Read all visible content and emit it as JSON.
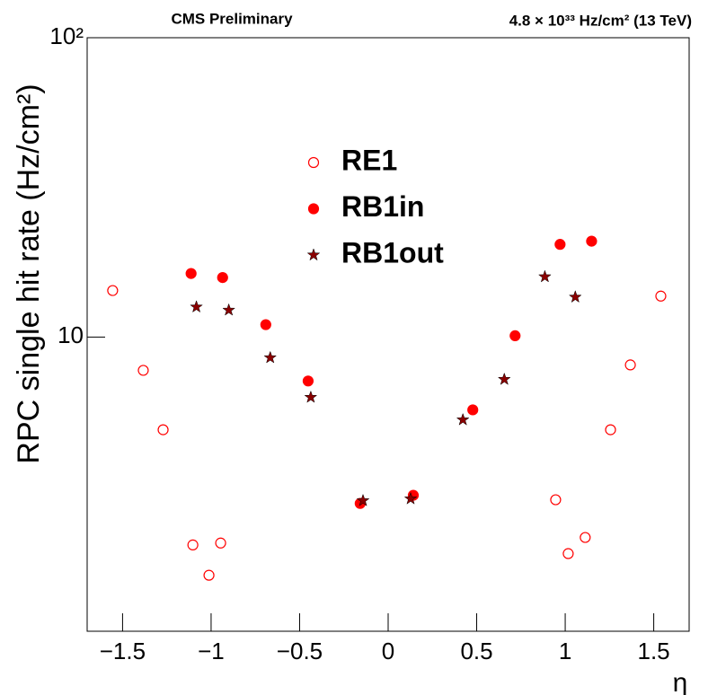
{
  "chart_data": {
    "type": "scatter",
    "title": "CMS Preliminary",
    "subtitle": "4.8 × 10³³ Hz/cm² (13 TeV)",
    "x_label": "η",
    "y_label": "RPC single hit rate (Hz/cm²)",
    "xlim": [
      -1.7,
      1.7
    ],
    "ylim": [
      1.04,
      100
    ],
    "log_y": true,
    "xticks": [
      {
        "value": -1.5,
        "label": "−1.5"
      },
      {
        "value": -1,
        "label": "−1"
      },
      {
        "value": -0.5,
        "label": "−0.5"
      },
      0,
      0.5,
      1,
      1.5
    ],
    "yticks": [
      10,
      {
        "value": 100,
        "label": "10²"
      }
    ],
    "legend": "top-center",
    "series": [
      {
        "name": "RE1",
        "color": "#ff0000",
        "marker": "open-circle",
        "x": [
          -1.556,
          -1.383,
          -1.271,
          -1.103,
          -1.012,
          -0.946,
          0.946,
          1.017,
          1.113,
          1.256,
          1.368,
          1.54
        ],
        "values": [
          14.3,
          7.74,
          4.9,
          2.02,
          1.6,
          2.05,
          2.86,
          1.89,
          2.14,
          4.9,
          8.07,
          13.7
        ]
      },
      {
        "name": "RB1in",
        "color": "#ff0000",
        "marker": "circle",
        "x": [
          -1.113,
          -0.935,
          -0.691,
          -0.452,
          -0.158,
          0.142,
          0.478,
          0.717,
          0.971,
          1.149
        ],
        "values": [
          16.3,
          15.8,
          11.0,
          7.13,
          2.78,
          2.96,
          5.71,
          10.1,
          20.4,
          20.9
        ]
      },
      {
        "name": "RB1out",
        "color": "#8b0000",
        "marker": "star",
        "x": [
          -1.083,
          -0.9,
          -0.666,
          -0.437,
          -0.142,
          0.127,
          0.422,
          0.656,
          0.885,
          1.057
        ],
        "values": [
          12.6,
          12.3,
          8.53,
          6.29,
          2.84,
          2.88,
          5.29,
          7.22,
          15.9,
          13.6
        ]
      }
    ]
  }
}
